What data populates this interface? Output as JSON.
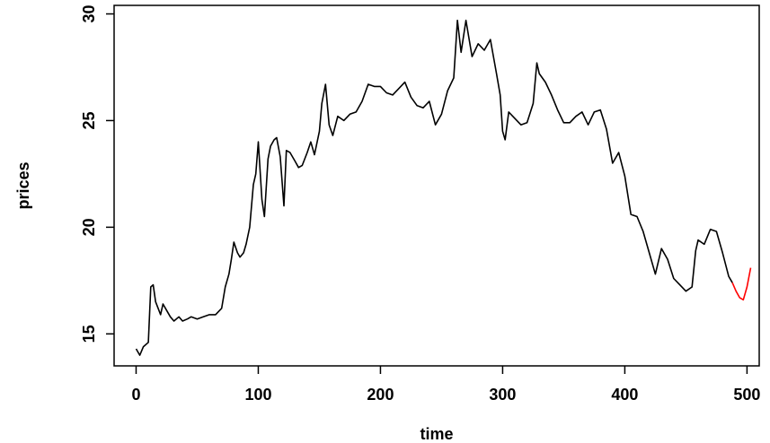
{
  "chart_data": {
    "type": "line",
    "title": "",
    "xlabel": "time",
    "ylabel": "prices",
    "xlim": [
      -18,
      510
    ],
    "ylim": [
      13.5,
      30.4
    ],
    "x_ticks": [
      0,
      100,
      200,
      300,
      400,
      500
    ],
    "y_ticks": [
      15,
      20,
      25,
      30
    ],
    "grid": false,
    "legend": "none",
    "series": [
      {
        "color": "#000000",
        "x": [
          0,
          3,
          6,
          10,
          12,
          14,
          16,
          18,
          20,
          22,
          25,
          28,
          31,
          35,
          38,
          42,
          45,
          50,
          55,
          60,
          65,
          70,
          73,
          76,
          78,
          80,
          83,
          85,
          88,
          90,
          93,
          96,
          98,
          100,
          103,
          105,
          108,
          110,
          113,
          115,
          118,
          121,
          123,
          126,
          130,
          133,
          136,
          140,
          143,
          146,
          150,
          152,
          155,
          158,
          161,
          165,
          170,
          175,
          180,
          185,
          190,
          195,
          200,
          205,
          210,
          215,
          220,
          225,
          230,
          235,
          240,
          245,
          250,
          255,
          260,
          263,
          266,
          270,
          275,
          280,
          285,
          290,
          295,
          298,
          300,
          302,
          305,
          310,
          315,
          320,
          325,
          328,
          330,
          335,
          340,
          345,
          350,
          355,
          360,
          365,
          370,
          375,
          380,
          385,
          390,
          395,
          400,
          405,
          410,
          415,
          420,
          425,
          430,
          435,
          440,
          445,
          450,
          455,
          458,
          460,
          465,
          470,
          475,
          480,
          485,
          488
        ],
        "y": [
          14.3,
          14.0,
          14.4,
          14.6,
          17.2,
          17.3,
          16.5,
          16.2,
          15.9,
          16.4,
          16.1,
          15.8,
          15.6,
          15.8,
          15.6,
          15.7,
          15.8,
          15.7,
          15.8,
          15.9,
          15.9,
          16.2,
          17.2,
          17.8,
          18.5,
          19.3,
          18.8,
          18.6,
          18.8,
          19.2,
          20.0,
          22.0,
          22.5,
          24.0,
          21.3,
          20.5,
          23.2,
          23.8,
          24.1,
          24.2,
          23.3,
          21.0,
          23.6,
          23.5,
          23.1,
          22.8,
          22.9,
          23.5,
          24.0,
          23.4,
          24.5,
          25.8,
          26.7,
          24.8,
          24.3,
          25.2,
          25.0,
          25.3,
          25.4,
          25.9,
          26.7,
          26.6,
          26.6,
          26.3,
          26.2,
          26.5,
          26.8,
          26.1,
          25.7,
          25.6,
          25.9,
          24.8,
          25.3,
          26.4,
          27.0,
          29.7,
          28.2,
          29.7,
          28.0,
          28.6,
          28.3,
          28.8,
          27.2,
          26.2,
          24.5,
          24.1,
          25.4,
          25.1,
          24.8,
          24.9,
          25.8,
          27.7,
          27.2,
          26.8,
          26.2,
          25.5,
          24.9,
          24.9,
          25.2,
          25.4,
          24.8,
          25.4,
          25.5,
          24.6,
          23.0,
          23.5,
          22.4,
          20.6,
          20.5,
          19.8,
          18.8,
          17.8,
          19.0,
          18.5,
          17.6,
          17.3,
          17.0,
          17.2,
          18.9,
          19.4,
          19.2,
          19.9,
          19.8,
          18.8,
          17.7,
          17.4
        ]
      },
      {
        "color": "#ff0000",
        "x": [
          488,
          491,
          494,
          497,
          500,
          503
        ],
        "y": [
          17.4,
          17.0,
          16.7,
          16.6,
          17.2,
          18.1
        ]
      }
    ]
  }
}
